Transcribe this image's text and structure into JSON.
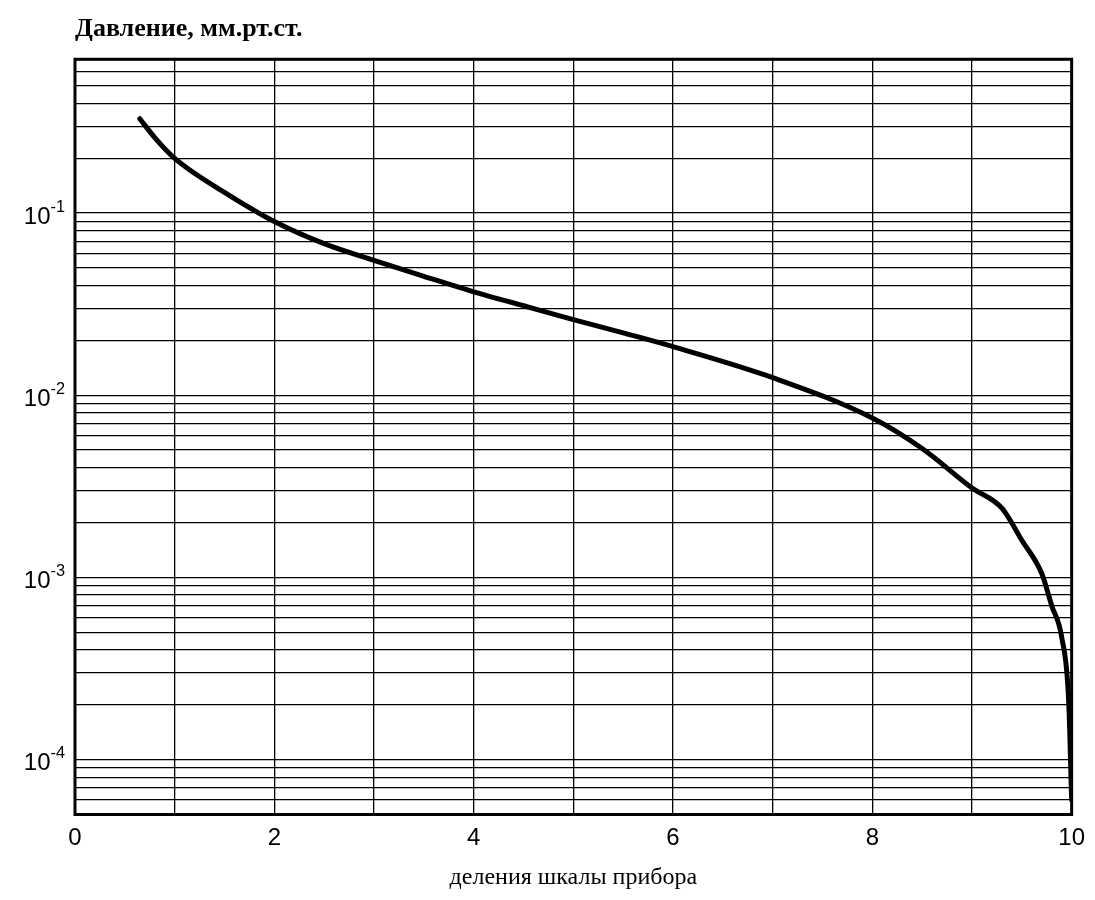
{
  "chart_data": {
    "type": "line",
    "title": "Давление, мм.рт.ст.",
    "xlabel": "деления шкалы прибора",
    "series": [
      {
        "color": "#000000",
        "x": [
          0.65,
          0.8,
          1,
          1.5,
          2,
          2.5,
          3,
          3.5,
          4,
          4.5,
          5,
          5.5,
          6,
          7,
          8,
          8.5,
          9,
          9.3,
          9.5,
          9.7,
          9.8,
          9.9,
          9.97,
          10
        ],
        "values": [
          0.33,
          0.26,
          0.2,
          0.13,
          0.09,
          0.068,
          0.055,
          0.045,
          0.037,
          0.031,
          0.026,
          0.022,
          0.0185,
          0.0125,
          0.0075,
          0.0051,
          0.0031,
          0.0024,
          0.0016,
          0.00105,
          0.0007,
          0.00047,
          0.00021,
          6e-05
        ]
      }
    ],
    "xlim": [
      0,
      10
    ],
    "xticks": [
      0,
      {
        "value": 1,
        "label": null
      },
      2,
      {
        "value": 3,
        "label": null
      },
      4,
      {
        "value": 5,
        "label": null
      },
      6,
      {
        "value": 7,
        "label": null
      },
      8,
      {
        "value": 9,
        "label": null
      },
      10
    ],
    "ylim": [
      5e-05,
      0.7
    ],
    "yticks": [
      {
        "value": 5e-05,
        "label": null
      },
      {
        "value": 6e-05,
        "label": null
      },
      {
        "value": 7e-05,
        "label": null
      },
      {
        "value": 8e-05,
        "label": null
      },
      {
        "value": 9e-05,
        "label": null
      },
      {
        "value": 0.0001,
        "label": "10$^{-4}$"
      },
      {
        "value": 0.0002,
        "label": null
      },
      {
        "value": 0.0003,
        "label": null
      },
      {
        "value": 0.0004,
        "label": null
      },
      {
        "value": 0.0005,
        "label": null
      },
      {
        "value": 0.0006,
        "label": null
      },
      {
        "value": 0.0007,
        "label": null
      },
      {
        "value": 0.0008,
        "label": null
      },
      {
        "value": 0.0009,
        "label": null
      },
      {
        "value": 0.001,
        "label": "10$^{-3}$"
      },
      {
        "value": 0.002,
        "label": null
      },
      {
        "value": 0.003,
        "label": null
      },
      {
        "value": 0.004,
        "label": null
      },
      {
        "value": 0.005,
        "label": null
      },
      {
        "value": 0.006,
        "label": null
      },
      {
        "value": 0.007,
        "label": null
      },
      {
        "value": 0.008,
        "label": null
      },
      {
        "value": 0.009,
        "label": null
      },
      {
        "value": 0.01,
        "label": "10$^{-2}$"
      },
      {
        "value": 0.02,
        "label": null
      },
      {
        "value": 0.03,
        "label": null
      },
      {
        "value": 0.04,
        "label": null
      },
      {
        "value": 0.05,
        "label": null
      },
      {
        "value": 0.06,
        "label": null
      },
      {
        "value": 0.07,
        "label": null
      },
      {
        "value": 0.08,
        "label": null
      },
      {
        "value": 0.09,
        "label": null
      },
      {
        "value": 0.1,
        "label": "10$^{-1}$"
      },
      {
        "value": 0.2,
        "label": null
      },
      {
        "value": 0.3,
        "label": null
      },
      {
        "value": 0.4,
        "label": null
      },
      {
        "value": 0.5,
        "label": null
      },
      {
        "value": 0.6,
        "label": null
      },
      {
        "value": 0.7,
        "label": null
      }
    ],
    "log": "y",
    "grid": true,
    "legend": false,
    "marker": "none",
    "line_style": "solid"
  }
}
